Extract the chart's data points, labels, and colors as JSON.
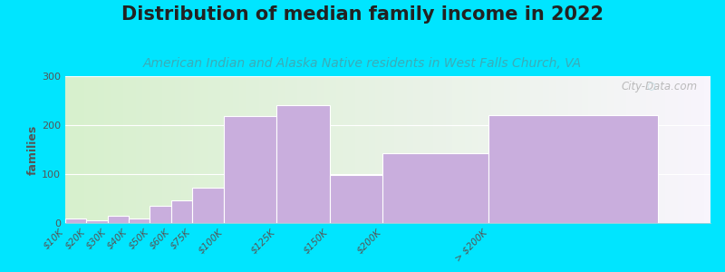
{
  "title": "Distribution of median family income in 2022",
  "subtitle": "American Indian and Alaska Native residents in West Falls Church, VA",
  "categories": [
    "$10K",
    "$20K",
    "$30K",
    "$40K",
    "$50K",
    "$60K",
    "$75K",
    "$100K",
    "$125K",
    "$150K",
    "$200K",
    "> $200K"
  ],
  "values": [
    10,
    5,
    15,
    10,
    35,
    47,
    72,
    218,
    240,
    98,
    142,
    220
  ],
  "bin_widths": [
    10,
    10,
    10,
    10,
    10,
    10,
    15,
    25,
    25,
    50,
    50,
    80
  ],
  "bin_lefts": [
    0,
    10,
    20,
    30,
    40,
    50,
    60,
    75,
    100,
    125,
    150,
    200
  ],
  "bar_color": "#c9aedd",
  "bar_edge_color": "#ffffff",
  "background_color": "#00e5ff",
  "ylabel": "families",
  "ylim": [
    0,
    300
  ],
  "yticks": [
    0,
    100,
    200,
    300
  ],
  "title_fontsize": 15,
  "subtitle_fontsize": 10,
  "subtitle_color": "#3aacb8",
  "watermark": "City-Data.com"
}
